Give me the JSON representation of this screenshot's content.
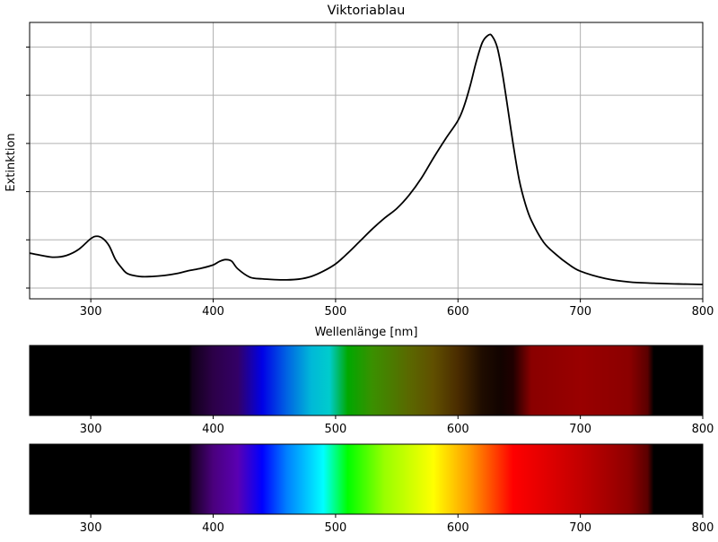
{
  "chart_data": [
    {
      "type": "line",
      "title": "Viktoriablau",
      "xlabel": "Wellenlänge [nm]",
      "ylabel": "Extinktion",
      "xlim": [
        250,
        800
      ],
      "ylim": [
        0,
        1.05
      ],
      "x_ticks": [
        300,
        400,
        500,
        600,
        700,
        800
      ],
      "x_tick_labels": [
        "300",
        "400",
        "500",
        "600",
        "700",
        "800"
      ],
      "y_ticks": [
        0,
        0.2,
        0.4,
        0.6,
        0.8,
        1.0
      ],
      "grid": true,
      "series": [
        {
          "color": "#000000",
          "x": [
            250,
            260,
            270,
            280,
            290,
            300,
            305,
            310,
            315,
            320,
            325,
            330,
            340,
            350,
            360,
            370,
            380,
            390,
            400,
            405,
            410,
            415,
            420,
            430,
            440,
            450,
            460,
            470,
            480,
            490,
            500,
            510,
            520,
            530,
            540,
            550,
            560,
            570,
            580,
            590,
            600,
            605,
            610,
            615,
            620,
            625,
            628,
            632,
            636,
            640,
            645,
            650,
            655,
            660,
            670,
            680,
            690,
            700,
            720,
            740,
            760,
            780,
            800
          ],
          "y": [
            0.145,
            0.135,
            0.128,
            0.135,
            0.16,
            0.205,
            0.215,
            0.205,
            0.175,
            0.12,
            0.085,
            0.06,
            0.048,
            0.048,
            0.052,
            0.06,
            0.072,
            0.082,
            0.096,
            0.11,
            0.118,
            0.112,
            0.08,
            0.045,
            0.038,
            0.035,
            0.034,
            0.037,
            0.048,
            0.07,
            0.1,
            0.145,
            0.195,
            0.245,
            0.29,
            0.33,
            0.385,
            0.455,
            0.54,
            0.62,
            0.695,
            0.755,
            0.84,
            0.94,
            1.02,
            1.05,
            1.045,
            1.0,
            0.9,
            0.77,
            0.6,
            0.45,
            0.35,
            0.28,
            0.19,
            0.14,
            0.1,
            0.07,
            0.04,
            0.025,
            0.02,
            0.017,
            0.015
          ]
        }
      ]
    },
    {
      "type": "heatmap",
      "xlim": [
        250,
        800
      ],
      "x_tick_labels": [
        "300",
        "400",
        "500",
        "600",
        "700",
        "800"
      ],
      "stops": [
        {
          "x": 380,
          "color": "#000000"
        },
        {
          "x": 383,
          "color": "#12001b"
        },
        {
          "x": 400,
          "color": "#2c0048"
        },
        {
          "x": 420,
          "color": "#330066"
        },
        {
          "x": 440,
          "color": "#0000e6"
        },
        {
          "x": 460,
          "color": "#0063e3"
        },
        {
          "x": 480,
          "color": "#00b8d8"
        },
        {
          "x": 495,
          "color": "#00cccc"
        },
        {
          "x": 510,
          "color": "#00a800"
        },
        {
          "x": 530,
          "color": "#3a9000"
        },
        {
          "x": 560,
          "color": "#5a6800"
        },
        {
          "x": 580,
          "color": "#604f00"
        },
        {
          "x": 600,
          "color": "#4a2c00"
        },
        {
          "x": 620,
          "color": "#1e0c00"
        },
        {
          "x": 635,
          "color": "#120300"
        },
        {
          "x": 645,
          "color": "#200000"
        },
        {
          "x": 660,
          "color": "#8a0000"
        },
        {
          "x": 700,
          "color": "#990000"
        },
        {
          "x": 740,
          "color": "#8b0000"
        },
        {
          "x": 755,
          "color": "#5a0000"
        },
        {
          "x": 760,
          "color": "#000000"
        }
      ]
    },
    {
      "type": "heatmap",
      "xlim": [
        250,
        800
      ],
      "x_tick_labels": [
        "300",
        "400",
        "500",
        "600",
        "700",
        "800"
      ],
      "stops": [
        {
          "x": 380,
          "color": "#000000"
        },
        {
          "x": 383,
          "color": "#1a0026"
        },
        {
          "x": 400,
          "color": "#4a007d"
        },
        {
          "x": 420,
          "color": "#5a00b3"
        },
        {
          "x": 440,
          "color": "#0000ff"
        },
        {
          "x": 460,
          "color": "#0080ff"
        },
        {
          "x": 490,
          "color": "#00ffff"
        },
        {
          "x": 510,
          "color": "#00ff00"
        },
        {
          "x": 540,
          "color": "#99ff00"
        },
        {
          "x": 580,
          "color": "#ffff00"
        },
        {
          "x": 610,
          "color": "#ff9900"
        },
        {
          "x": 645,
          "color": "#ff0000"
        },
        {
          "x": 700,
          "color": "#c20000"
        },
        {
          "x": 740,
          "color": "#8e0000"
        },
        {
          "x": 755,
          "color": "#5a0000"
        },
        {
          "x": 760,
          "color": "#000000"
        }
      ]
    }
  ]
}
